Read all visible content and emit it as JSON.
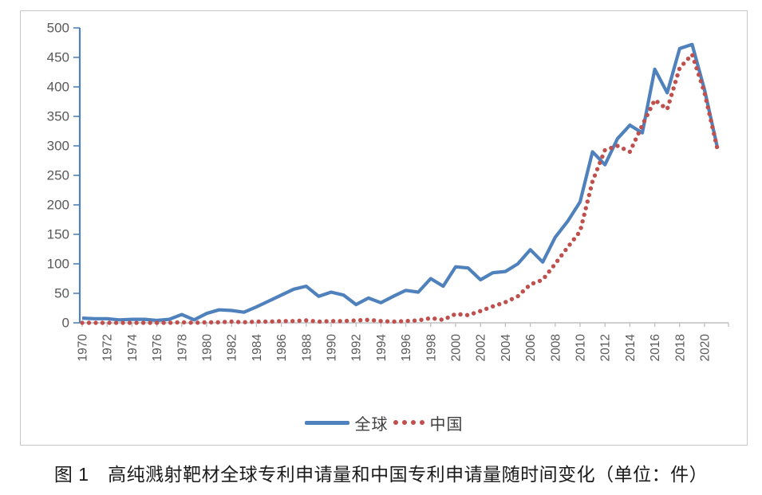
{
  "figure": {
    "caption": "图 1　高纯溅射靶材全球专利申请量和中国专利申请量随时间变化（单位：件）"
  },
  "legend": {
    "global_label": "全球",
    "china_label": "中国"
  },
  "colors": {
    "global_line": "#4f81bd",
    "china_line": "#c0504d",
    "axis_line": "#bfbfbf",
    "tick_label": "#595959",
    "legend_text": "#404040",
    "frame_border": "#c9c9c9"
  },
  "chart_data": {
    "type": "line",
    "title": "",
    "xlabel": "",
    "ylabel": "",
    "unit": "件",
    "ylim": [
      0,
      500
    ],
    "ytick_step": 50,
    "xtick_step": 2,
    "grid": false,
    "legend_position": "bottom",
    "x": [
      1970,
      1971,
      1972,
      1973,
      1974,
      1975,
      1976,
      1977,
      1978,
      1979,
      1980,
      1981,
      1982,
      1983,
      1984,
      1985,
      1986,
      1987,
      1988,
      1989,
      1990,
      1991,
      1992,
      1993,
      1994,
      1995,
      1996,
      1997,
      1998,
      1999,
      2000,
      2001,
      2002,
      2003,
      2004,
      2005,
      2006,
      2007,
      2008,
      2009,
      2010,
      2011,
      2012,
      2013,
      2014,
      2015,
      2016,
      2017,
      2018,
      2019,
      2020,
      2021
    ],
    "series": [
      {
        "name": "全球",
        "style": "solid",
        "color": "#4f81bd",
        "values": [
          8,
          7,
          7,
          5,
          6,
          6,
          4,
          6,
          14,
          5,
          16,
          22,
          21,
          18,
          27,
          37,
          47,
          57,
          62,
          45,
          52,
          47,
          31,
          42,
          34,
          45,
          55,
          52,
          75,
          62,
          95,
          93,
          73,
          85,
          87,
          100,
          124,
          103,
          145,
          172,
          205,
          290,
          268,
          312,
          335,
          322,
          430,
          390,
          465,
          472,
          395,
          300
        ]
      },
      {
        "name": "中国",
        "style": "dotted",
        "color": "#c0504d",
        "values": [
          0,
          0,
          0,
          0,
          0,
          0,
          0,
          0,
          1,
          0,
          1,
          1,
          2,
          1,
          2,
          2,
          3,
          3,
          4,
          2,
          3,
          3,
          4,
          5,
          3,
          2,
          3,
          4,
          8,
          5,
          15,
          13,
          20,
          28,
          35,
          45,
          65,
          73,
          100,
          128,
          155,
          240,
          293,
          300,
          290,
          335,
          378,
          362,
          432,
          455,
          390,
          298
        ]
      }
    ]
  }
}
